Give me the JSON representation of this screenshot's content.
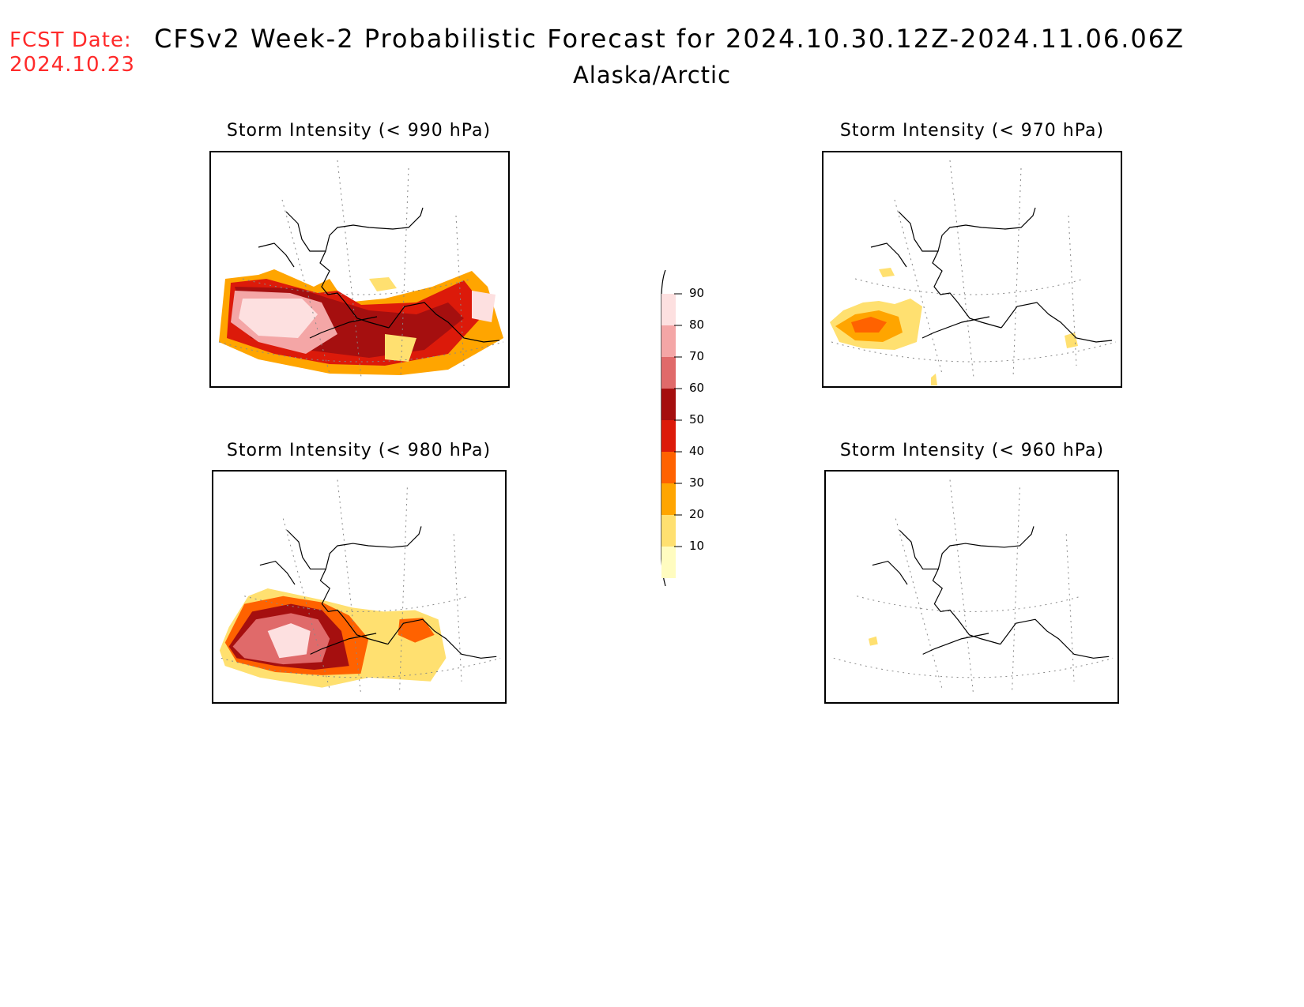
{
  "header": {
    "fcst_label": "FCST Date:",
    "fcst_date": "2024.10.23",
    "title": "CFSv2 Week-2 Probabilistic Forecast for 2024.10.30.12Z-2024.11.06.06Z",
    "subtitle": "Alaska/Arctic"
  },
  "panels": [
    {
      "title": "Storm Intensity (< 990 hPa)",
      "coverage": "high"
    },
    {
      "title": "Storm Intensity (< 970 hPa)",
      "coverage": "medium"
    },
    {
      "title": "Storm Intensity (< 980 hPa)",
      "coverage": "high"
    },
    {
      "title": "Storm Intensity (< 960 hPa)",
      "coverage": "minimal"
    }
  ],
  "legend": {
    "labels": [
      "90",
      "80",
      "70",
      "60",
      "50",
      "40",
      "30",
      "20",
      "10"
    ],
    "colors": [
      "#fde0e0",
      "#f4a6a6",
      "#e06a6a",
      "#a50f0f",
      "#dc1a0a",
      "#ff6200",
      "#ffa500",
      "#ffe070",
      "#fffcc0"
    ]
  }
}
